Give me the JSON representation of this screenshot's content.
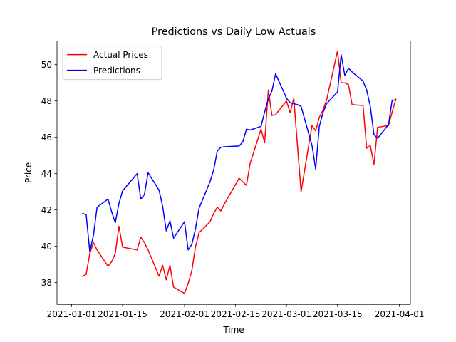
{
  "chart_data": {
    "type": "line",
    "title": "Predictions vs Daily Low Actuals",
    "xlabel": "Time",
    "ylabel": "Price",
    "x_axis_type": "date",
    "xlim": [
      "2020-12-28",
      "2021-04-04"
    ],
    "ylim": [
      36.8,
      51.3
    ],
    "x_ticks": [
      "2021-01-01",
      "2021-01-15",
      "2021-02-01",
      "2021-02-15",
      "2021-03-01",
      "2021-03-15",
      "2021-04-01"
    ],
    "y_ticks": [
      38,
      40,
      42,
      44,
      46,
      48,
      50
    ],
    "grid": false,
    "legend_position": "upper-left",
    "series": [
      {
        "name": "Actual Prices",
        "color": "#ff0000",
        "points": [
          [
            "2021-01-04",
            38.35
          ],
          [
            "2021-01-05",
            38.45
          ],
          [
            "2021-01-06",
            39.6
          ],
          [
            "2021-01-07",
            40.2
          ],
          [
            "2021-01-08",
            39.8
          ],
          [
            "2021-01-11",
            38.9
          ],
          [
            "2021-01-12",
            39.15
          ],
          [
            "2021-01-13",
            39.6
          ],
          [
            "2021-01-14",
            41.1
          ],
          [
            "2021-01-15",
            39.95
          ],
          [
            "2021-01-19",
            39.8
          ],
          [
            "2021-01-20",
            40.5
          ],
          [
            "2021-01-21",
            40.2
          ],
          [
            "2021-01-22",
            39.8
          ],
          [
            "2021-01-25",
            38.35
          ],
          [
            "2021-01-26",
            38.95
          ],
          [
            "2021-01-27",
            38.15
          ],
          [
            "2021-01-28",
            38.95
          ],
          [
            "2021-01-29",
            37.75
          ],
          [
            "2021-02-01",
            37.4
          ],
          [
            "2021-02-02",
            37.95
          ],
          [
            "2021-02-03",
            38.65
          ],
          [
            "2021-02-04",
            39.95
          ],
          [
            "2021-02-05",
            40.75
          ],
          [
            "2021-02-08",
            41.35
          ],
          [
            "2021-02-09",
            41.8
          ],
          [
            "2021-02-10",
            42.15
          ],
          [
            "2021-02-11",
            41.95
          ],
          [
            "2021-02-12",
            42.35
          ],
          [
            "2021-02-16",
            43.75
          ],
          [
            "2021-02-17",
            43.55
          ],
          [
            "2021-02-18",
            43.35
          ],
          [
            "2021-02-19",
            44.55
          ],
          [
            "2021-02-22",
            46.45
          ],
          [
            "2021-02-23",
            45.7
          ],
          [
            "2021-02-24",
            48.6
          ],
          [
            "2021-02-25",
            47.2
          ],
          [
            "2021-02-26",
            47.25
          ],
          [
            "2021-03-01",
            48.0
          ],
          [
            "2021-03-02",
            47.35
          ],
          [
            "2021-03-03",
            48.15
          ],
          [
            "2021-03-04",
            45.55
          ],
          [
            "2021-03-05",
            43.0
          ],
          [
            "2021-03-08",
            46.65
          ],
          [
            "2021-03-09",
            46.35
          ],
          [
            "2021-03-10",
            47.1
          ],
          [
            "2021-03-11",
            47.5
          ],
          [
            "2021-03-12",
            48.05
          ],
          [
            "2021-03-15",
            50.75
          ],
          [
            "2021-03-16",
            49.0
          ],
          [
            "2021-03-17",
            49.0
          ],
          [
            "2021-03-18",
            48.9
          ],
          [
            "2021-03-19",
            47.8
          ],
          [
            "2021-03-22",
            47.75
          ],
          [
            "2021-03-23",
            45.4
          ],
          [
            "2021-03-24",
            45.55
          ],
          [
            "2021-03-25",
            44.5
          ],
          [
            "2021-03-26",
            46.55
          ],
          [
            "2021-03-29",
            46.65
          ],
          [
            "2021-03-30",
            47.4
          ],
          [
            "2021-03-31",
            48.1
          ]
        ]
      },
      {
        "name": "Predictions",
        "color": "#0000ff",
        "points": [
          [
            "2021-01-04",
            41.8
          ],
          [
            "2021-01-05",
            41.75
          ],
          [
            "2021-01-06",
            39.7
          ],
          [
            "2021-01-07",
            40.6
          ],
          [
            "2021-01-08",
            42.15
          ],
          [
            "2021-01-11",
            42.6
          ],
          [
            "2021-01-12",
            41.9
          ],
          [
            "2021-01-13",
            41.3
          ],
          [
            "2021-01-14",
            42.35
          ],
          [
            "2021-01-15",
            43.05
          ],
          [
            "2021-01-19",
            44.0
          ],
          [
            "2021-01-20",
            42.6
          ],
          [
            "2021-01-21",
            42.85
          ],
          [
            "2021-01-22",
            44.05
          ],
          [
            "2021-01-25",
            43.1
          ],
          [
            "2021-01-26",
            42.2
          ],
          [
            "2021-01-27",
            40.85
          ],
          [
            "2021-01-28",
            41.4
          ],
          [
            "2021-01-29",
            40.45
          ],
          [
            "2021-02-01",
            41.35
          ],
          [
            "2021-02-02",
            39.8
          ],
          [
            "2021-02-03",
            40.1
          ],
          [
            "2021-02-04",
            40.95
          ],
          [
            "2021-02-05",
            42.1
          ],
          [
            "2021-02-08",
            43.55
          ],
          [
            "2021-02-09",
            44.2
          ],
          [
            "2021-02-10",
            45.25
          ],
          [
            "2021-02-11",
            45.45
          ],
          [
            "2021-02-12",
            45.48
          ],
          [
            "2021-02-16",
            45.52
          ],
          [
            "2021-02-17",
            45.75
          ],
          [
            "2021-02-18",
            46.45
          ],
          [
            "2021-02-19",
            46.4
          ],
          [
            "2021-02-22",
            46.6
          ],
          [
            "2021-02-23",
            47.4
          ],
          [
            "2021-02-24",
            48.1
          ],
          [
            "2021-02-25",
            48.55
          ],
          [
            "2021-02-26",
            49.5
          ],
          [
            "2021-03-01",
            48.15
          ],
          [
            "2021-03-02",
            47.9
          ],
          [
            "2021-03-03",
            47.85
          ],
          [
            "2021-03-04",
            47.8
          ],
          [
            "2021-03-05",
            47.7
          ],
          [
            "2021-03-08",
            45.55
          ],
          [
            "2021-03-09",
            44.25
          ],
          [
            "2021-03-10",
            46.6
          ],
          [
            "2021-03-11",
            47.35
          ],
          [
            "2021-03-12",
            47.85
          ],
          [
            "2021-03-15",
            48.5
          ],
          [
            "2021-03-16",
            50.55
          ],
          [
            "2021-03-17",
            49.4
          ],
          [
            "2021-03-18",
            49.8
          ],
          [
            "2021-03-19",
            49.6
          ],
          [
            "2021-03-22",
            49.1
          ],
          [
            "2021-03-23",
            48.6
          ],
          [
            "2021-03-24",
            47.7
          ],
          [
            "2021-03-25",
            46.15
          ],
          [
            "2021-03-26",
            45.95
          ],
          [
            "2021-03-29",
            46.7
          ],
          [
            "2021-03-30",
            48.05
          ],
          [
            "2021-03-31",
            48.05
          ]
        ]
      }
    ]
  }
}
